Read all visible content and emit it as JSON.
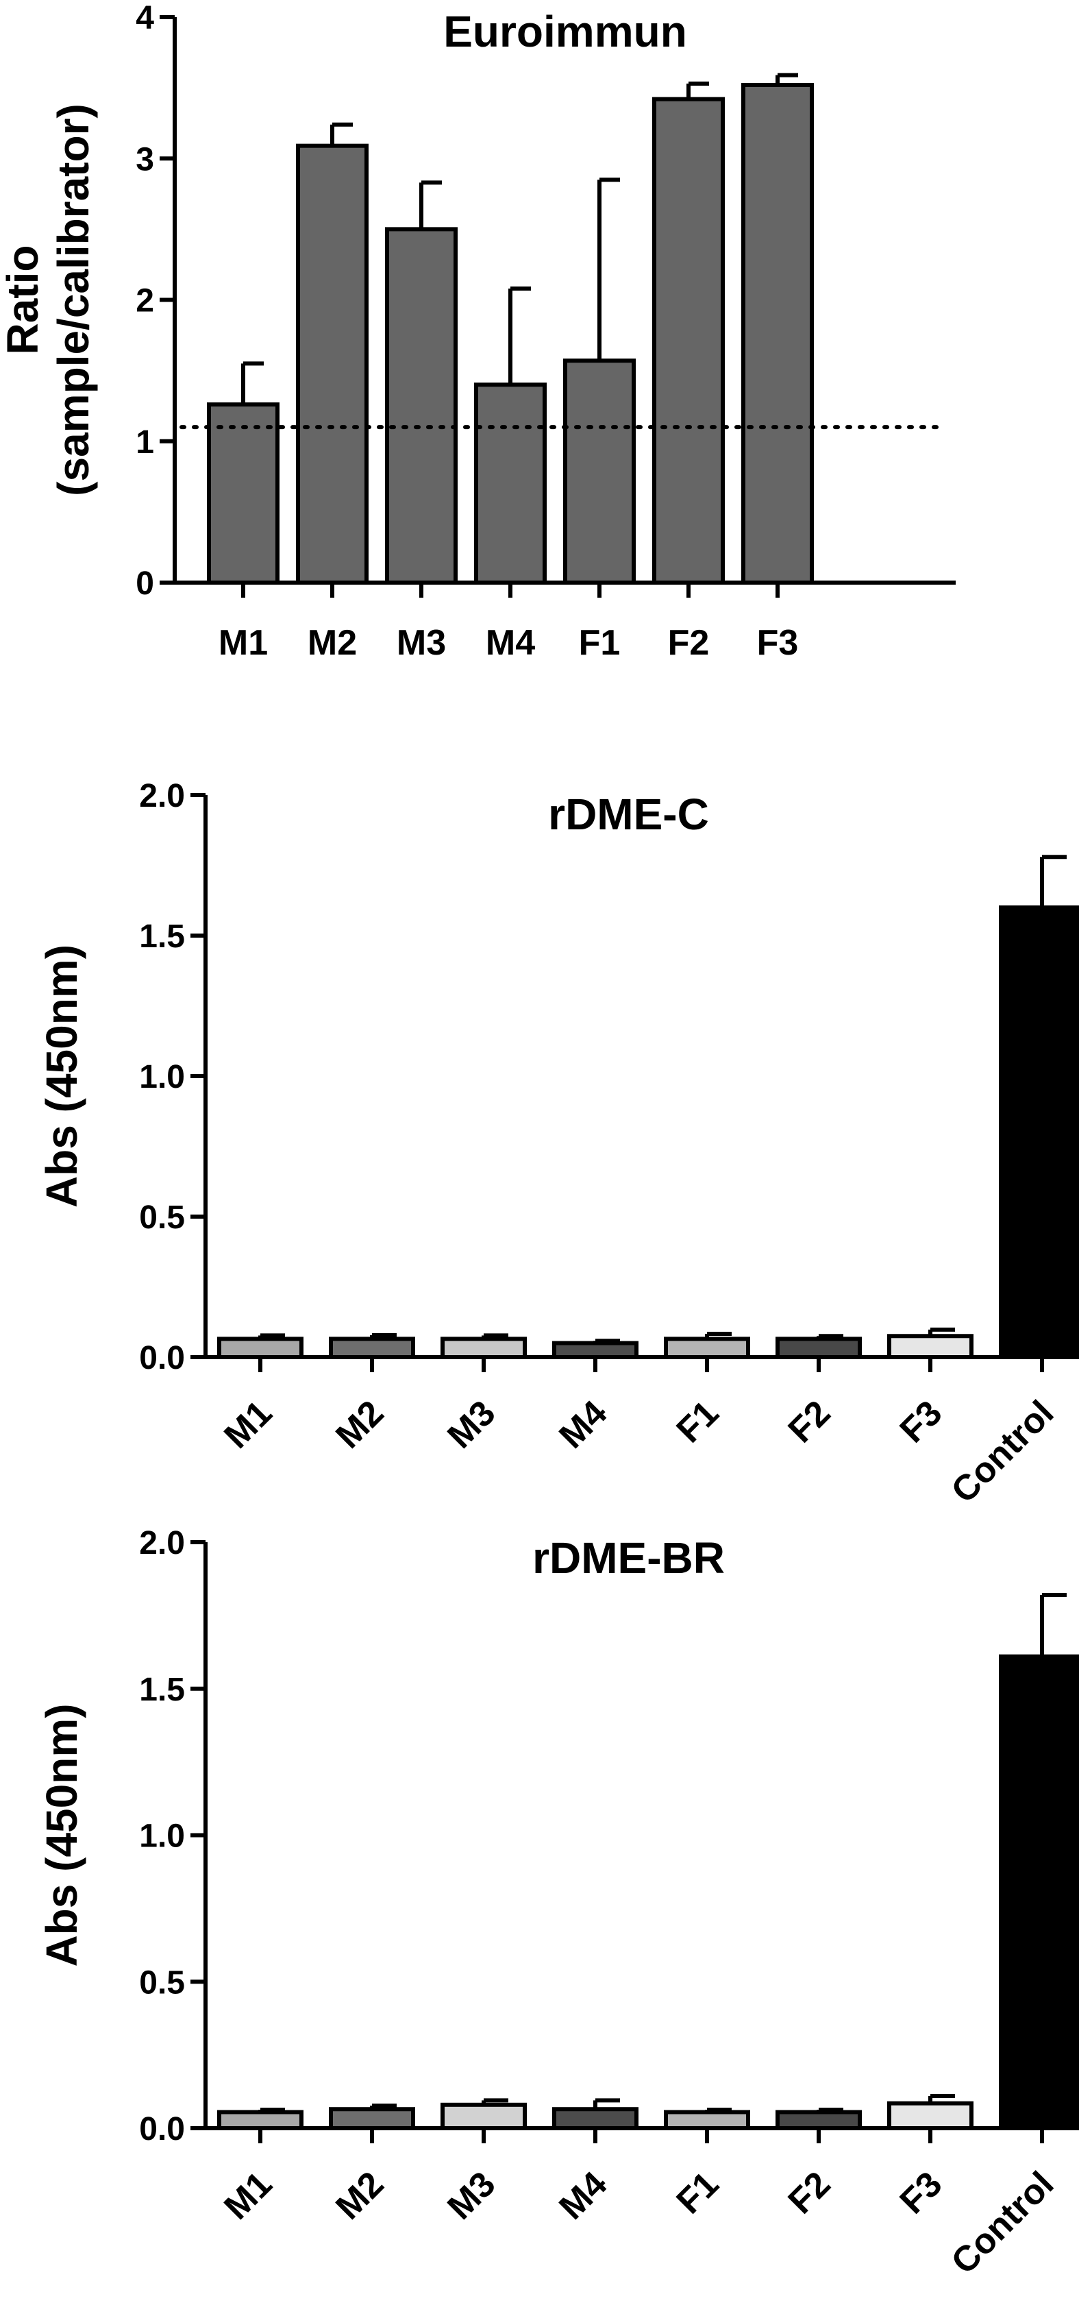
{
  "chart_data": [
    {
      "type": "bar",
      "title": "Euroimmun",
      "ylabel": [
        "Ratio",
        "(sample/calibrator)"
      ],
      "ylim": [
        0,
        4
      ],
      "yticks": [
        0,
        1,
        2,
        3,
        4
      ],
      "xtick_rotation": 0,
      "grid": false,
      "categories": [
        "M1",
        "M2",
        "M3",
        "M4",
        "F1",
        "F2",
        "F3"
      ],
      "values": [
        1.26,
        3.09,
        2.5,
        1.4,
        1.57,
        3.42,
        3.52
      ],
      "errors": [
        0.29,
        0.15,
        0.33,
        0.68,
        1.28,
        0.11,
        0.07
      ],
      "bar_colors": [
        "#666666",
        "#666666",
        "#666666",
        "#666666",
        "#666666",
        "#666666",
        "#666666"
      ],
      "reference_line": {
        "y": 1.1,
        "style": "dotted"
      }
    },
    {
      "type": "bar",
      "title": "rDME-C",
      "ylabel": [
        "Abs (450nm)"
      ],
      "ylim": [
        0,
        2.0
      ],
      "yticks": [
        "0.0",
        "0.5",
        "1.0",
        "1.5",
        "2.0"
      ],
      "xtick_rotation": -45,
      "grid": false,
      "categories": [
        "M1",
        "M2",
        "M3",
        "M4",
        "F1",
        "F2",
        "F3",
        "Control"
      ],
      "values": [
        0.065,
        0.065,
        0.065,
        0.05,
        0.065,
        0.065,
        0.075,
        1.6
      ],
      "errors": [
        0.012,
        0.013,
        0.012,
        0.008,
        0.018,
        0.01,
        0.023,
        0.18
      ],
      "bar_colors": [
        "#a8a8a8",
        "#6e6e6e",
        "#c8c8c8",
        "#4c4c4c",
        "#b4b4b4",
        "#484848",
        "#e6e6e6",
        "#000000"
      ]
    },
    {
      "type": "bar",
      "title": "rDME-BR",
      "ylabel": [
        "Abs (450nm)"
      ],
      "ylim": [
        0,
        2.0
      ],
      "yticks": [
        "0.0",
        "0.5",
        "1.0",
        "1.5",
        "2.0"
      ],
      "xtick_rotation": -45,
      "grid": false,
      "categories": [
        "M1",
        "M2",
        "M3",
        "M4",
        "F1",
        "F2",
        "F3",
        "Control"
      ],
      "values": [
        0.055,
        0.065,
        0.08,
        0.065,
        0.055,
        0.055,
        0.085,
        1.61
      ],
      "errors": [
        0.008,
        0.012,
        0.015,
        0.03,
        0.008,
        0.008,
        0.025,
        0.21
      ],
      "bar_colors": [
        "#a8a8a8",
        "#6e6e6e",
        "#d2d2d2",
        "#4c4c4c",
        "#b4b4b4",
        "#484848",
        "#e6e6e6",
        "#000000"
      ]
    }
  ]
}
